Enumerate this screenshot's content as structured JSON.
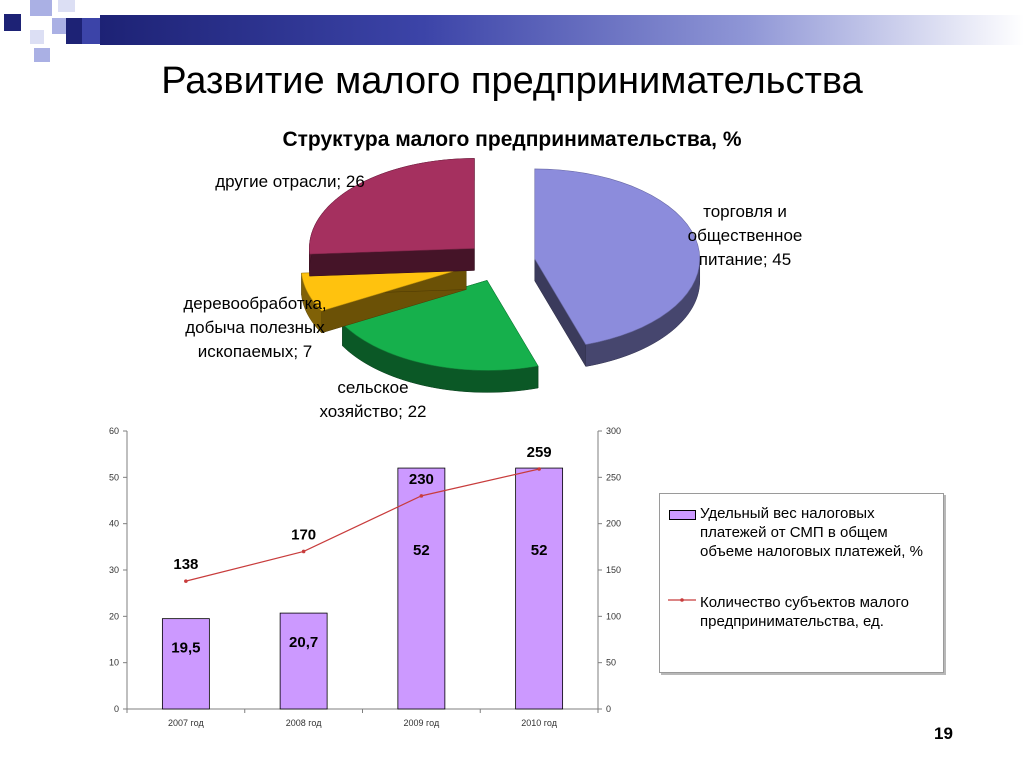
{
  "slide": {
    "title": "Развитие малого предпринимательства",
    "page_number": "19"
  },
  "colors": {
    "deco_navy": "#1d2275",
    "deco_lavender": "#aab0e4",
    "bar_fill": "#cc99ff",
    "line_color": "#c83c3c"
  },
  "pie": {
    "title": "Структура малого предпринимательства, %",
    "labels": {
      "trade": [
        "торговля и",
        "общественное",
        "питание; 45"
      ],
      "agriculture": [
        "сельское",
        "хозяйство; 22"
      ],
      "wood": [
        "деревообработка,",
        "добыча полезных",
        "ископаемых; 7"
      ],
      "other": [
        "другие отрасли; 26"
      ]
    }
  },
  "legend": {
    "bar_text": "Удельный вес налоговых платежей от СМП в общем объеме налоговых платежей, %",
    "line_text": "Количество субъектов малого предпринимательства, ед."
  },
  "chart_data": [
    {
      "type": "pie",
      "title": "Структура малого предпринимательства, %",
      "categories": [
        "торговля и общественное питание",
        "сельское хозяйство",
        "деревообработка, добыча полезных ископаемых",
        "другие отрасли"
      ],
      "values": [
        45,
        22,
        7,
        26
      ],
      "colors": [
        "#8c8cdc",
        "#16b04c",
        "#ffc20e",
        "#a5305f"
      ],
      "style": "3d-exploded"
    },
    {
      "type": "bar",
      "categories": [
        "2007 год",
        "2008 год",
        "2009 год",
        "2010 год"
      ],
      "series": [
        {
          "name": "Удельный вес налоговых платежей от СМП в общем объеме налоговых платежей, %",
          "type": "bar",
          "axis": "left",
          "values": [
            19.5,
            20.7,
            52,
            52
          ],
          "data_labels": [
            "19,5",
            "20,7",
            "52",
            "52"
          ]
        },
        {
          "name": "Количество субъектов малого предпринимательства, ед.",
          "type": "line",
          "axis": "right",
          "values": [
            138,
            170,
            230,
            259
          ],
          "data_labels": [
            "138",
            "170",
            "230",
            "259"
          ]
        }
      ],
      "ylim": [
        0,
        60
      ],
      "yticks": [
        "0",
        "10",
        "20",
        "30",
        "40",
        "50",
        "60"
      ],
      "y2lim": [
        0,
        300
      ],
      "y2ticks": [
        "0",
        "50",
        "100",
        "150",
        "200",
        "250",
        "300"
      ],
      "grid": false,
      "legend_position": "right"
    }
  ]
}
